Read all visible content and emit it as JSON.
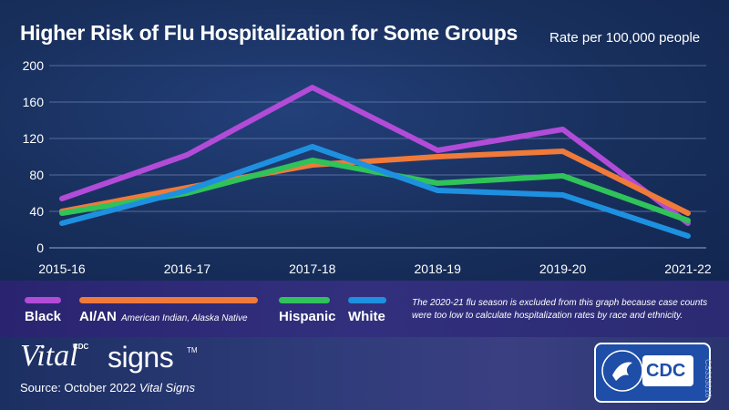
{
  "header": {
    "title": "Higher Risk of Flu Hospitalization for Some Groups",
    "unit_note": "Rate per 100,000 people"
  },
  "chart_data": {
    "type": "line",
    "title": "Higher Risk of Flu Hospitalization for Some Groups",
    "ylabel": "Rate per 100,000 people",
    "x": [
      "2015-16",
      "2016-17",
      "2017-18",
      "2018-19",
      "2019-20",
      "2021-22"
    ],
    "ylim": [
      0,
      200
    ],
    "yticks": [
      0,
      40,
      80,
      120,
      160,
      200
    ],
    "grid": true,
    "legend_position": "bottom",
    "series": [
      {
        "name": "Black",
        "color": "#b24bd8",
        "values": [
          54,
          102,
          176,
          107,
          130,
          27
        ]
      },
      {
        "name": "AI/AN",
        "color": "#f07a3a",
        "values": [
          40,
          66,
          91,
          100,
          106,
          38
        ]
      },
      {
        "name": "Hispanic",
        "color": "#2fc35a",
        "values": [
          38,
          60,
          96,
          71,
          79,
          30
        ]
      },
      {
        "name": "White",
        "color": "#1e90e0",
        "values": [
          27,
          63,
          111,
          63,
          58,
          13
        ]
      }
    ]
  },
  "legend": {
    "items": [
      {
        "label": "Black",
        "color": "#b24bd8"
      },
      {
        "label": "AI/AN",
        "sub": "American Indian, Alaska Native",
        "color": "#f07a3a"
      },
      {
        "label": "Hispanic",
        "color": "#2fc35a"
      },
      {
        "label": "White",
        "color": "#1e90e0"
      }
    ],
    "note": "The 2020-21 flu season is excluded from this graph because case counts were too low to calculate hospitalization rates by race and ethnicity."
  },
  "footer": {
    "brand_small": "CDC",
    "brand_vital": "Vital",
    "brand_signs": "signs",
    "trademark": "TM",
    "source_prefix": "Source: October 2022 ",
    "source_italic": "Vital Signs",
    "logo_text": "CDC",
    "code": "CS333018"
  }
}
